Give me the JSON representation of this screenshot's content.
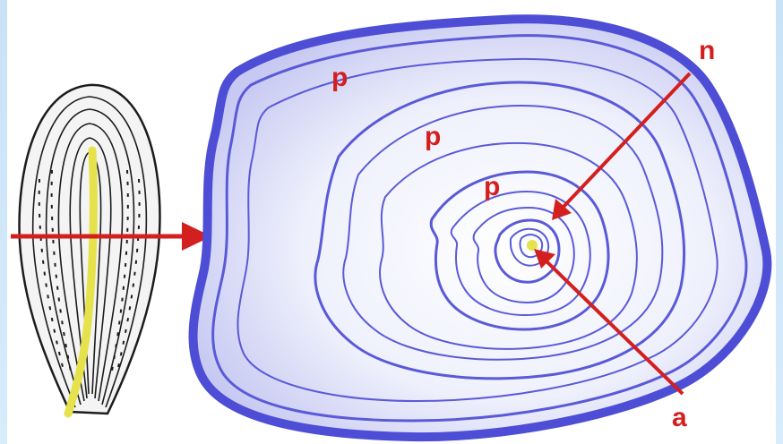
{
  "labels": {
    "p_outer": "p",
    "p_middle": "p",
    "p_inner": "p",
    "n": "n",
    "a": "a"
  },
  "colors": {
    "background": "#cfe6f8",
    "arrow": "#d41f1f",
    "layer_stroke": "#4a4ad0",
    "layer_fill": "#e8e8fb",
    "axis": "#e8e84a",
    "outline": "#222222"
  }
}
